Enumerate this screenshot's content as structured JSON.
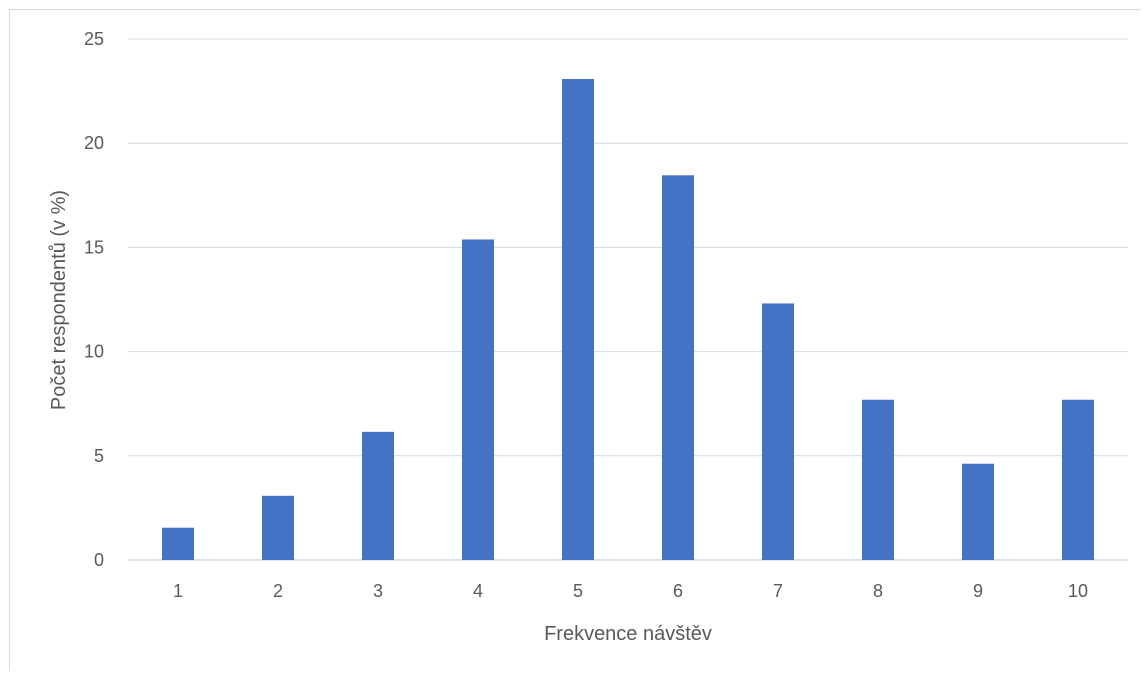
{
  "chart_data": {
    "type": "bar",
    "title": "",
    "xlabel": "Frekvence návštěv",
    "ylabel": "Počet respondentů (v %)",
    "categories": [
      "1",
      "2",
      "3",
      "4",
      "5",
      "6",
      "7",
      "8",
      "9",
      "10"
    ],
    "values": [
      1.55,
      3.08,
      6.15,
      15.38,
      23.08,
      18.46,
      12.31,
      7.69,
      4.62,
      7.69
    ],
    "ylim": [
      0,
      25
    ],
    "yticks": [
      0,
      5,
      10,
      15,
      20,
      25
    ],
    "grid": true,
    "legend": "none",
    "colors": {
      "bar": "#4472c4",
      "grid": "#d9d9d9",
      "axis_text": "#595959"
    }
  }
}
